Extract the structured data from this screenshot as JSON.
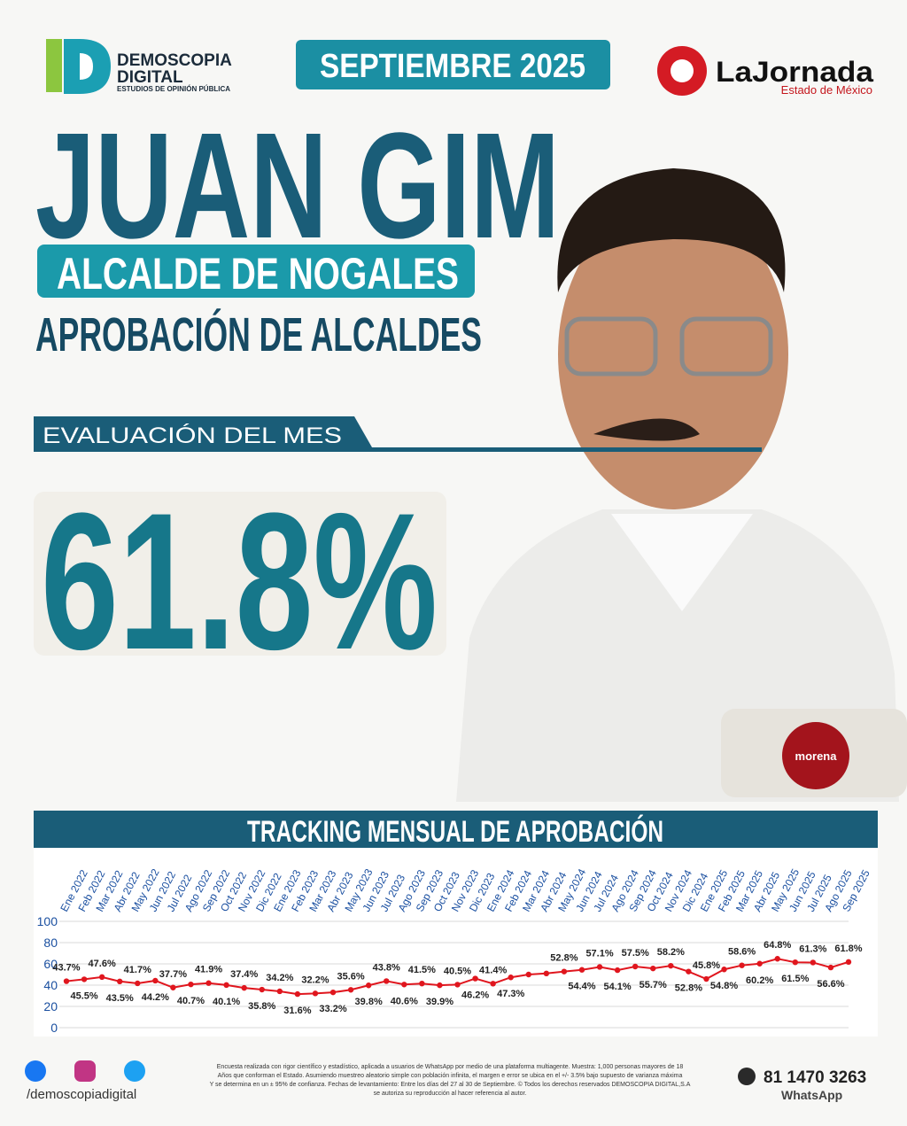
{
  "header": {
    "brand": "DEMOSCOPIA",
    "brand_sub": "DIGITAL",
    "brand_tag": "ESTUDIOS DE OPINIÓN PÚBLICA",
    "date": "SEPTIEMBRE 2025",
    "partner": "LaJornada",
    "partner_sub": "Estado de México",
    "name": "JUAN GIM",
    "role": "ALCALDE DE NOGALES",
    "section": "APROBACIÓN DE ALCALDES",
    "month_label": "EVALUACIÓN DEL MES",
    "month_value": "61.8%",
    "party": "morena"
  },
  "chart_data": {
    "type": "line",
    "title": "TRACKING MENSUAL DE APROBACIÓN",
    "categories": [
      "Ene 2022",
      "Feb 2022",
      "Mar 2022",
      "Abr 2022",
      "May 2022",
      "Jun 2022",
      "Jul 2022",
      "Ago 2022",
      "Sep 2022",
      "Oct 2022",
      "Nov 2022",
      "Dic 2022",
      "Ene 2023",
      "Feb 2023",
      "Mar 2023",
      "Abr 2023",
      "May 2023",
      "Jun 2023",
      "Jul 2023",
      "Ago 2023",
      "Sep 2023",
      "Oct 2023",
      "Nov 2023",
      "Dic 2023",
      "Ene 2024",
      "Feb 2024",
      "Mar 2024",
      "Abr 2024",
      "May 2024",
      "Jun 2024",
      "Jul 2024",
      "Ago 2024",
      "Sep 2024",
      "Oct 2024",
      "Nov 2024",
      "Dic 2024",
      "Ene 2025",
      "Feb 2025",
      "Mar 2025",
      "Abr 2025",
      "May 2025",
      "Jun 2025",
      "Jul 2025",
      "Ago 2025",
      "Sep 2025"
    ],
    "series": [
      {
        "name": "Aprobación",
        "color": "#e0161e",
        "values": [
          43.7,
          45.5,
          47.6,
          43.5,
          41.7,
          44.2,
          37.7,
          40.7,
          41.9,
          40.1,
          37.4,
          35.8,
          34.2,
          31.6,
          32.2,
          33.2,
          35.6,
          39.8,
          43.8,
          40.6,
          41.5,
          39.9,
          40.5,
          46.2,
          41.4,
          47.3,
          50,
          51,
          52.8,
          54.4,
          57.1,
          54.1,
          57.5,
          55.7,
          58.2,
          52.8,
          45.8,
          54.8,
          58.6,
          60.2,
          64.8,
          61.5,
          61.3,
          56.6,
          61.8
        ],
        "value_labels": [
          "43.7%",
          "45.5%",
          "47.6%",
          "43.5%",
          "41.7%",
          "44.2%",
          "37.7%",
          "40.7%",
          "41.9%",
          "40.1%",
          "37.4%",
          "35.8%",
          "34.2%",
          "31.6%",
          "32.2%",
          "33.2%",
          "35.6%",
          "39.8%",
          "43.8%",
          "40.6%",
          "41.5%",
          "39.9%",
          "40.5%",
          "46.2%",
          "41.4%",
          "47.3%",
          null,
          null,
          "52.8%",
          "54.4%",
          "57.1%",
          "54.1%",
          "57.5%",
          "55.7%",
          "58.2%",
          "52.8%",
          "45.8%",
          "54.8%",
          "58.6%",
          "60.2%",
          "64.8%",
          "61.5%",
          "61.3%",
          "56.6%",
          "61.8%"
        ]
      }
    ],
    "ylim": [
      0,
      100
    ],
    "yticks": [
      0,
      20,
      40,
      60,
      80,
      100
    ],
    "grid": true
  },
  "footer": {
    "social": "/demoscopiadigital",
    "notes": [
      "Encuesta realizada con rigor científico y estadístico, aplicada a usuarios de WhatsApp por medio de una plataforma multiagente. Muestra: 1,000 personas mayores de 18",
      "Años que conforman el Estado. Asumiendo muestreo aleatorio simple con población infinita, el margen e error se ubica en el +/- 3.5% bajo supuesto de varianza máxima",
      "Y se determina en un ± 95% de confianza. Fechas de levantamiento: Entre los días del 27 al 30 de Septiembre. © Todos los derechos reservados DEMOSCOPIA DIGITAL,S.A",
      "se autoriza su reproducción al hacer referencia al autor."
    ],
    "phone": "81 1470 3263",
    "phone_app": "WhatsApp"
  }
}
